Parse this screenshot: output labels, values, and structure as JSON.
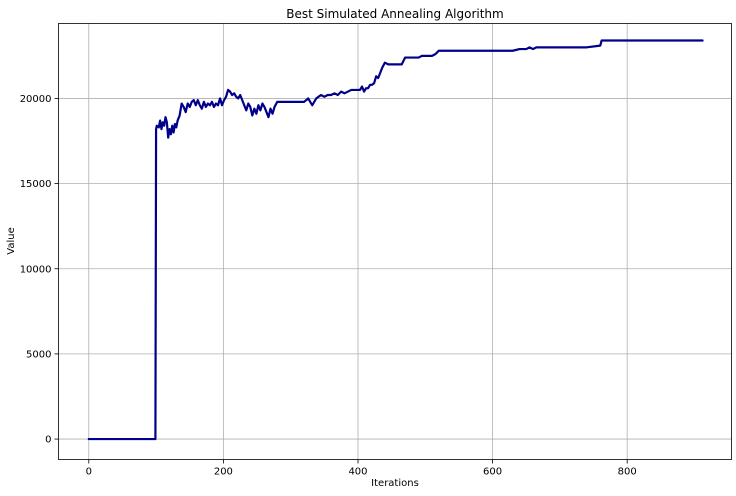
{
  "chart_data": {
    "type": "line",
    "title": "Best Simulated Annealing Algorithm",
    "xlabel": "Iterations",
    "ylabel": "Value",
    "xlim": [
      -45,
      955
    ],
    "ylim": [
      -1200,
      24400
    ],
    "grid": true,
    "xticks": [
      0,
      200,
      400,
      600,
      800
    ],
    "yticks": [
      0,
      5000,
      10000,
      15000,
      20000
    ],
    "line_color": "#00008b",
    "series": [
      {
        "x": [
          0,
          98,
          99,
          100,
          101,
          104,
          106,
          108,
          110,
          112,
          114,
          116,
          118,
          120,
          122,
          124,
          126,
          128,
          130,
          132,
          135,
          138,
          141,
          144,
          147,
          150,
          153,
          156,
          159,
          162,
          165,
          168,
          171,
          174,
          177,
          180,
          183,
          186,
          189,
          192,
          195,
          198,
          201,
          204,
          207,
          210,
          213,
          216,
          219,
          222,
          225,
          228,
          231,
          234,
          237,
          240,
          243,
          246,
          249,
          252,
          255,
          258,
          261,
          264,
          267,
          270,
          273,
          276,
          280,
          290,
          300,
          310,
          320,
          326,
          332,
          338,
          345,
          350,
          355,
          360,
          365,
          370,
          375,
          380,
          390,
          400,
          403,
          406,
          409,
          412,
          415,
          418,
          421,
          424,
          427,
          430,
          433,
          436,
          440,
          445,
          450,
          455,
          460,
          465,
          470,
          475,
          480,
          485,
          490,
          495,
          500,
          505,
          510,
          515,
          520,
          525,
          530,
          535,
          545,
          555,
          570,
          585,
          600,
          620,
          630,
          640,
          650,
          655,
          660,
          665,
          670,
          680,
          700,
          720,
          740,
          760,
          762,
          764,
          780,
          800,
          850,
          900,
          912
        ],
        "y": [
          0,
          0,
          0,
          18200,
          18400,
          18300,
          18700,
          18200,
          18600,
          18400,
          18900,
          18600,
          17700,
          18200,
          17900,
          18400,
          18000,
          18500,
          18300,
          18700,
          19000,
          19700,
          19500,
          19200,
          19700,
          19500,
          19800,
          19900,
          19600,
          19900,
          19600,
          19400,
          19800,
          19500,
          19700,
          19600,
          19800,
          19500,
          19700,
          19600,
          20000,
          19600,
          19900,
          20100,
          20500,
          20400,
          20200,
          20300,
          20100,
          20000,
          20200,
          19900,
          19600,
          19300,
          19700,
          19500,
          19000,
          19400,
          19100,
          19600,
          19300,
          19700,
          19500,
          19200,
          18900,
          19400,
          19100,
          19500,
          19800,
          19800,
          19800,
          19800,
          19800,
          20000,
          19600,
          20000,
          20200,
          20100,
          20200,
          20200,
          20300,
          20200,
          20400,
          20300,
          20500,
          20500,
          20500,
          20700,
          20400,
          20600,
          20600,
          20800,
          20800,
          20900,
          21300,
          21200,
          21500,
          21800,
          22100,
          22000,
          22000,
          22000,
          22000,
          22000,
          22400,
          22400,
          22400,
          22400,
          22400,
          22500,
          22500,
          22500,
          22500,
          22600,
          22800,
          22800,
          22800,
          22800,
          22800,
          22800,
          22800,
          22800,
          22800,
          22800,
          22800,
          22900,
          22900,
          23000,
          22900,
          23000,
          23000,
          23000,
          23000,
          23000,
          23000,
          23100,
          23400,
          23400,
          23400,
          23400,
          23400,
          23400,
          23400
        ]
      }
    ]
  }
}
